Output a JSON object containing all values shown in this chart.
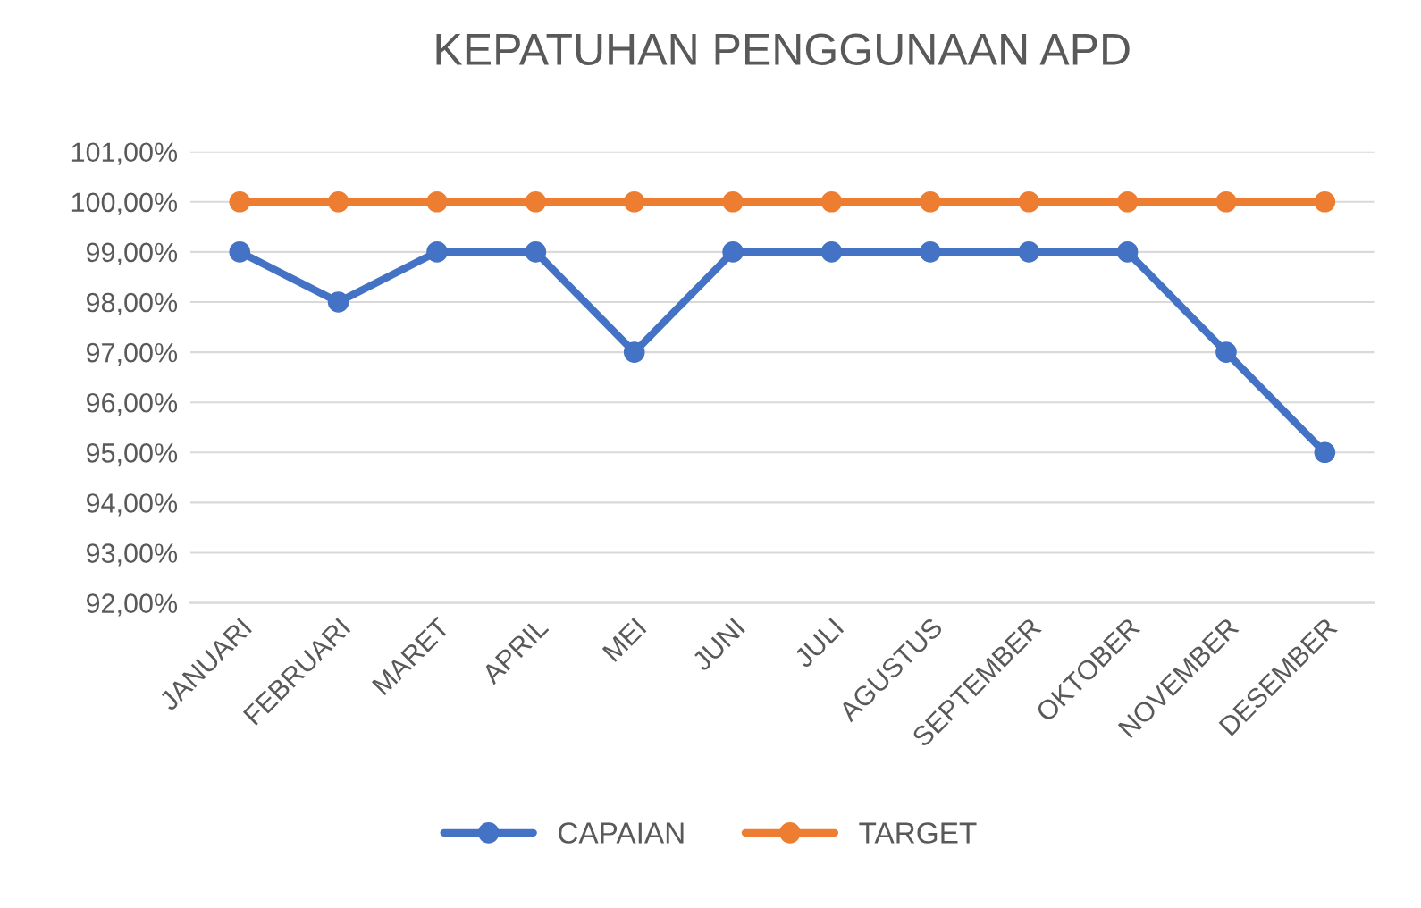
{
  "chart_data": {
    "type": "line",
    "title": "KEPATUHAN PENGGUNAAN APD",
    "categories": [
      "JANUARI",
      "FEBRUARI",
      "MARET",
      "APRIL",
      "MEI",
      "JUNI",
      "JULI",
      "AGUSTUS",
      "SEPTEMBER",
      "OKTOBER",
      "NOVEMBER",
      "DESEMBER"
    ],
    "series": [
      {
        "name": "CAPAIAN",
        "color": "#4472c4",
        "values": [
          99,
          98,
          99,
          99,
          97,
          99,
          99,
          99,
          99,
          99,
          97,
          95
        ]
      },
      {
        "name": "TARGET",
        "color": "#ed7d31",
        "values": [
          100,
          100,
          100,
          100,
          100,
          100,
          100,
          100,
          100,
          100,
          100,
          100
        ]
      }
    ],
    "ylim": [
      92,
      101
    ],
    "yticks": [
      {
        "value": 92,
        "label": "92,00%"
      },
      {
        "value": 93,
        "label": "93,00%"
      },
      {
        "value": 94,
        "label": "94,00%"
      },
      {
        "value": 95,
        "label": "95,00%"
      },
      {
        "value": 96,
        "label": "96,00%"
      },
      {
        "value": 97,
        "label": "97,00%"
      },
      {
        "value": 98,
        "label": "98,00%"
      },
      {
        "value": 99,
        "label": "99,00%"
      },
      {
        "value": 100,
        "label": "100,00%"
      },
      {
        "value": 101,
        "label": "101,00%"
      }
    ],
    "grid": "y",
    "legend": "bottom",
    "marker": "circle",
    "line_style": "solid"
  }
}
